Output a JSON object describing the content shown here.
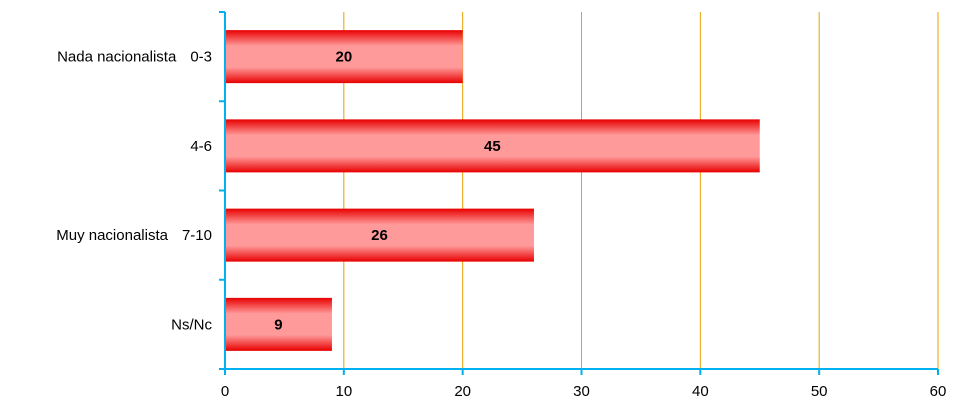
{
  "colors": {
    "bar_light": "#ff9a9a",
    "bar_dark": "#e80000",
    "gridline": "#e8a000",
    "axis": "#00b0f0",
    "background": "#ffffff"
  },
  "chart_data": {
    "type": "bar",
    "orientation": "horizontal",
    "title": "",
    "xlabel": "",
    "ylabel": "",
    "categories": [
      "Nada nacionalista 0-3",
      "4-6",
      "Muy nacionalista 7-10",
      "Ns/Nc"
    ],
    "category_labels": [
      {
        "left": "Nada nacionalista",
        "right": "0-3"
      },
      {
        "left": "",
        "right": "4-6"
      },
      {
        "left": "Muy nacionalista",
        "right": "7-10"
      },
      {
        "left": "",
        "right": "Ns/Nc"
      }
    ],
    "values": [
      20,
      45,
      26,
      9
    ],
    "data_labels": [
      "20",
      "45",
      "26",
      "9"
    ],
    "xlim": [
      0,
      60
    ],
    "xticks": [
      0,
      10,
      20,
      30,
      40,
      50,
      60
    ],
    "xtick_labels": [
      "0",
      "10",
      "20",
      "30",
      "40",
      "50",
      "60"
    ],
    "grid": true,
    "legend": "none"
  }
}
